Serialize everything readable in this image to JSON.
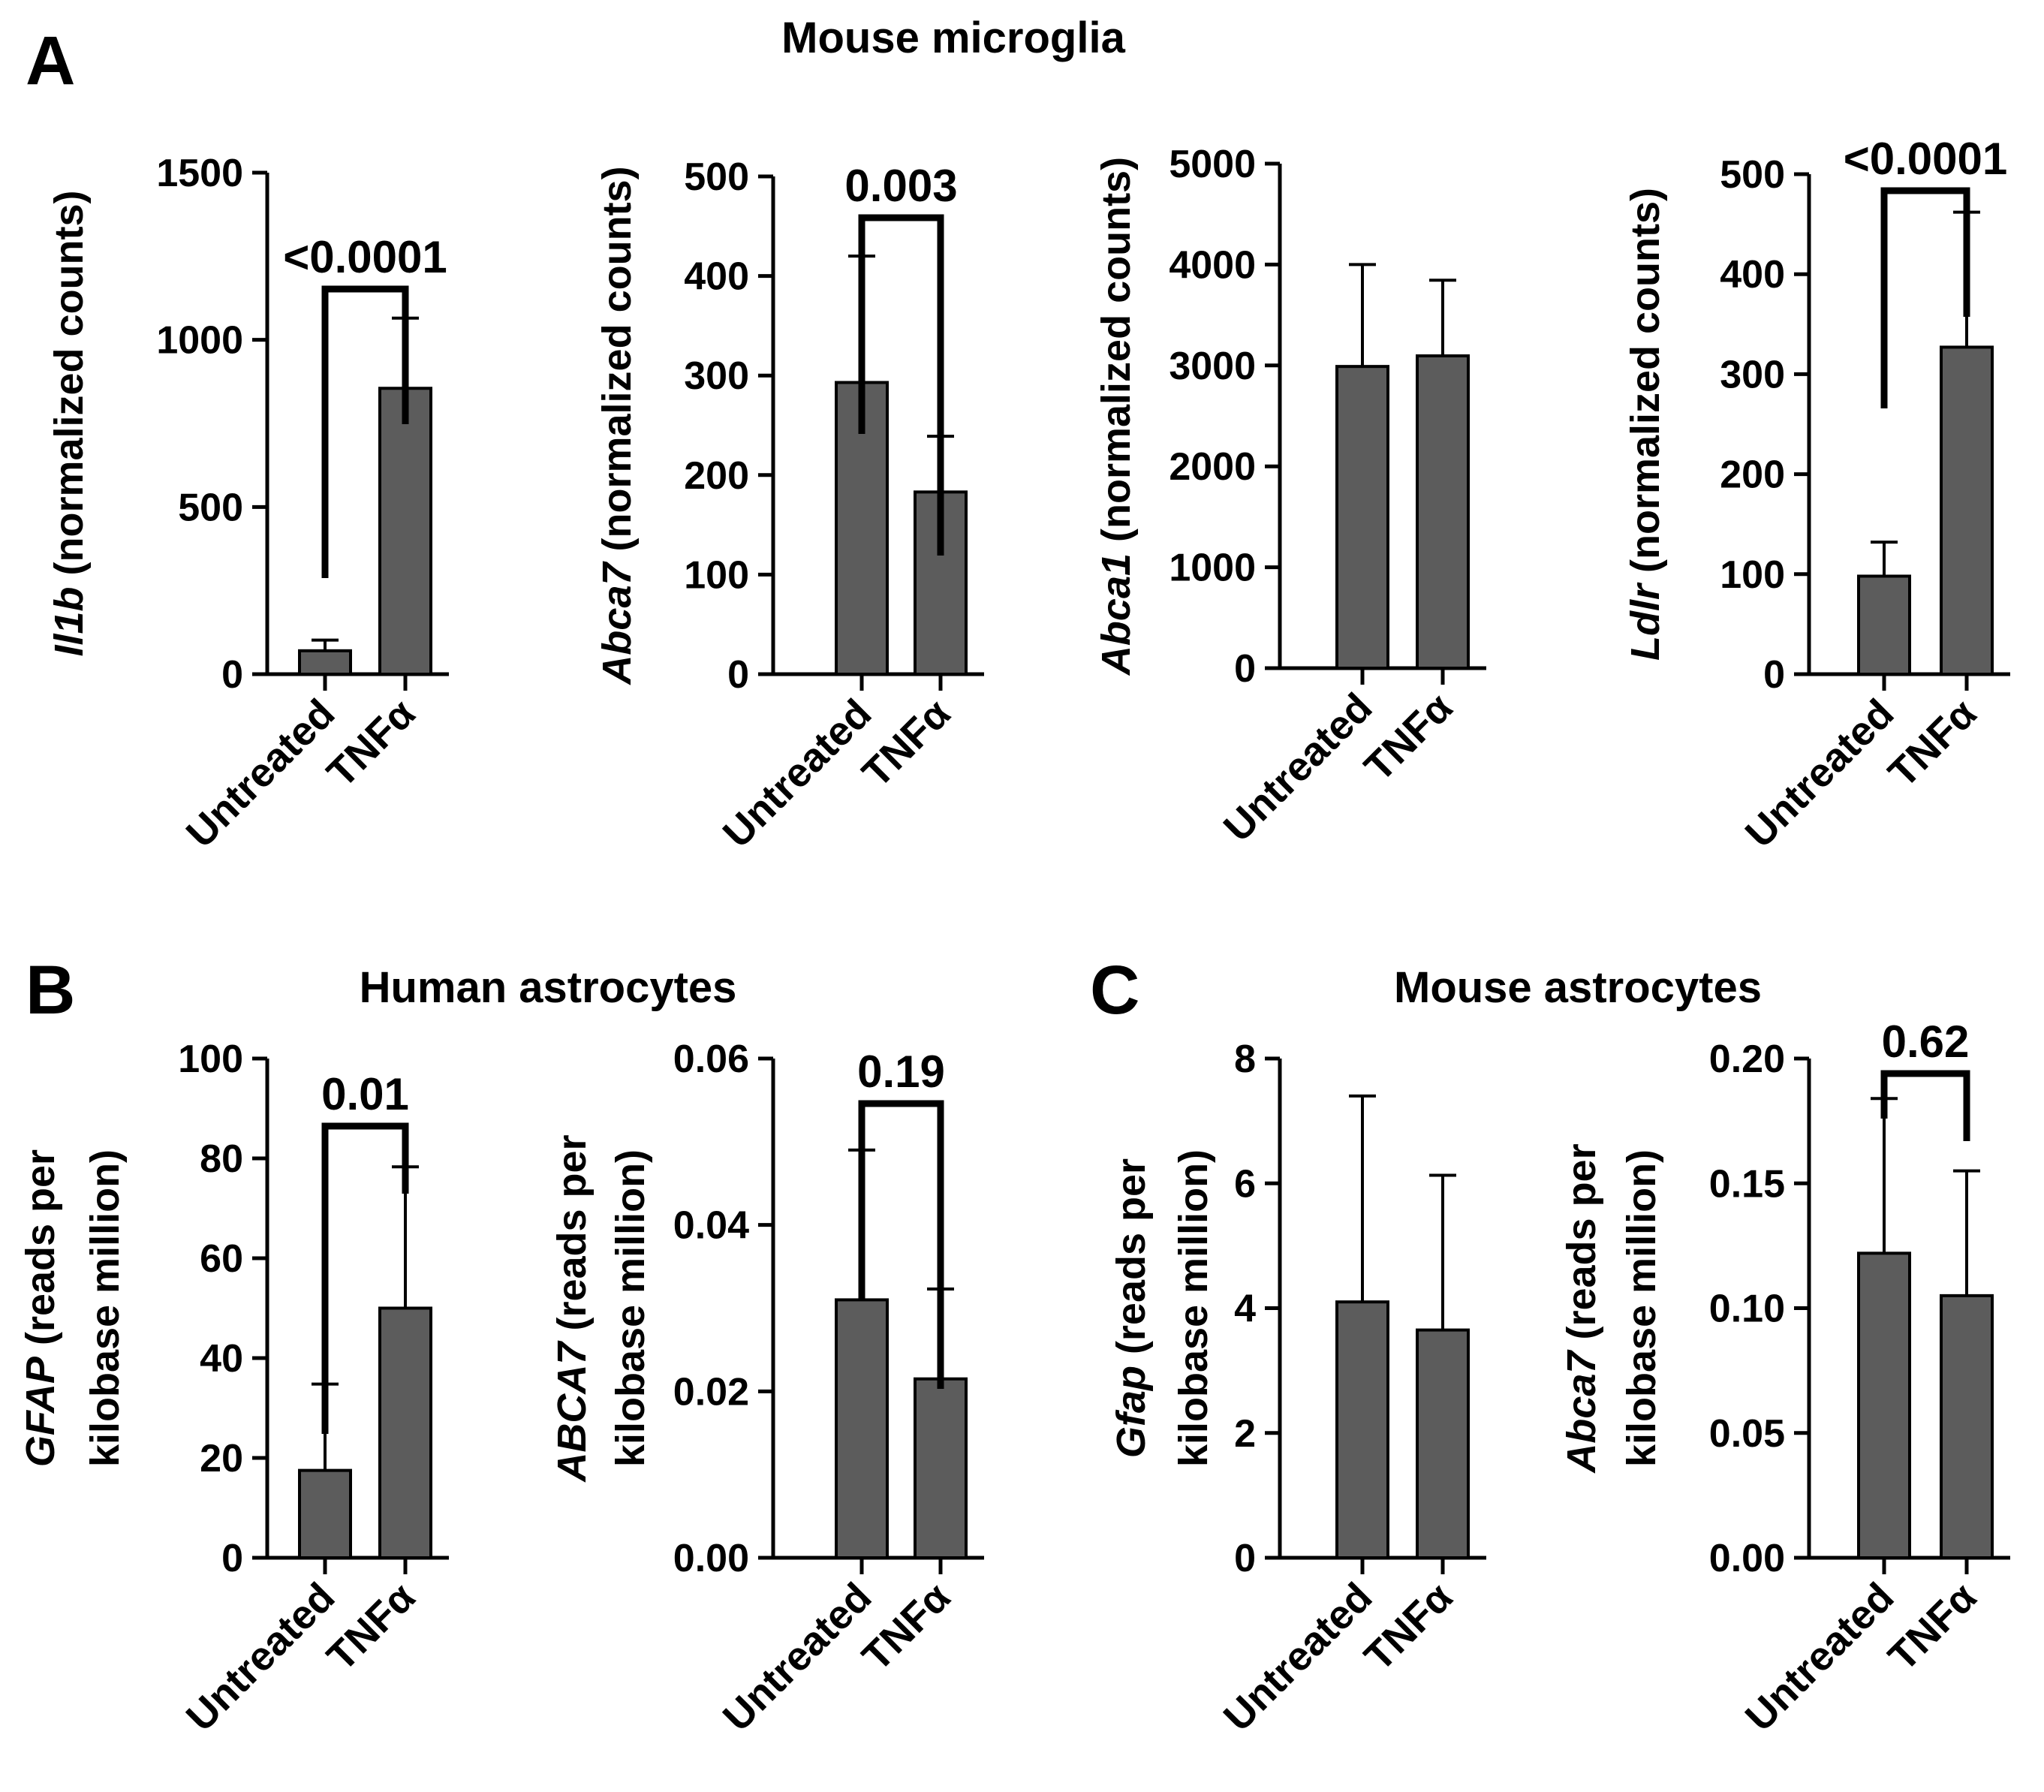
{
  "figure": {
    "panels": [
      {
        "letter": "A",
        "title": "Mouse microglia"
      },
      {
        "letter": "B",
        "title": "Human astrocytes"
      },
      {
        "letter": "C",
        "title": "Mouse astrocytes"
      }
    ]
  },
  "chart_data": [
    {
      "type": "bar",
      "panel": "A",
      "gene": "Il1b",
      "ylabel": " (normalized counts)",
      "categories": [
        "Untreated",
        "TNFα"
      ],
      "values": [
        70,
        855
      ],
      "errors": [
        32,
        210
      ],
      "ylim": [
        0,
        1500
      ],
      "yticks": [
        "0",
        "500",
        "1000",
        "1500"
      ],
      "significance": "<0.0001"
    },
    {
      "type": "bar",
      "panel": "A",
      "gene": "Abca7",
      "ylabel": " (normalized counts)",
      "categories": [
        "Untreated",
        "TNFα"
      ],
      "values": [
        293,
        183
      ],
      "errors": [
        127,
        56
      ],
      "ylim": [
        0,
        500
      ],
      "yticks": [
        "0",
        "100",
        "200",
        "300",
        "400",
        "500"
      ],
      "significance": "0.003"
    },
    {
      "type": "bar",
      "panel": "A",
      "gene": "Abca1",
      "ylabel": " (normalized counts)",
      "categories": [
        "Untreated",
        "TNFα"
      ],
      "values": [
        2990,
        3095
      ],
      "errors": [
        1010,
        750
      ],
      "ylim": [
        0,
        5000
      ],
      "yticks": [
        "0",
        "1000",
        "2000",
        "3000",
        "4000",
        "5000"
      ],
      "significance": null
    },
    {
      "type": "bar",
      "panel": "A",
      "gene": "Ldlr",
      "ylabel": " (normalized counts)",
      "categories": [
        "Untreated",
        "TNFα"
      ],
      "values": [
        98,
        327
      ],
      "errors": [
        34,
        135
      ],
      "ylim": [
        0,
        500
      ],
      "yticks": [
        "0",
        "100",
        "200",
        "300",
        "400",
        "500"
      ],
      "significance": "<0.0001"
    },
    {
      "type": "bar",
      "panel": "B",
      "gene": "GFAP",
      "ylabel": " (reads per",
      "ylabel2": "kilobase million)",
      "categories": [
        "Untreated",
        "TNFα"
      ],
      "values": [
        17.5,
        50
      ],
      "errors": [
        17.3,
        28.3
      ],
      "ylim": [
        0,
        100
      ],
      "yticks": [
        "0",
        "20",
        "40",
        "60",
        "80",
        "100"
      ],
      "significance": "0.01"
    },
    {
      "type": "bar",
      "panel": "B",
      "gene": "ABCA7",
      "ylabel": " (reads per",
      "ylabel2": "kilobase million)",
      "categories": [
        "Untreated",
        "TNFα"
      ],
      "values": [
        0.031,
        0.0215
      ],
      "errors": [
        0.018,
        0.0108
      ],
      "ylim": [
        0,
        0.06
      ],
      "yticks": [
        "0.00",
        "0.02",
        "0.04",
        "0.06"
      ],
      "significance": "0.19"
    },
    {
      "type": "bar",
      "panel": "C",
      "gene": "Gfap",
      "ylabel": " (reads per",
      "ylabel2": "kilobase million)",
      "categories": [
        "Untreated",
        "TNFα"
      ],
      "values": [
        4.1,
        3.65
      ],
      "errors": [
        3.3,
        2.48
      ],
      "ylim": [
        0,
        8
      ],
      "yticks": [
        "0",
        "2",
        "4",
        "6",
        "8"
      ],
      "significance": null
    },
    {
      "type": "bar",
      "panel": "C",
      "gene": "Abca7",
      "ylabel": " (reads per",
      "ylabel2": "kilobase million)",
      "categories": [
        "Untreated",
        "TNFα"
      ],
      "values": [
        0.122,
        0.105
      ],
      "errors": [
        0.062,
        0.05
      ],
      "ylim": [
        0,
        0.2
      ],
      "yticks": [
        "0.00",
        "0.05",
        "0.10",
        "0.15",
        "0.20"
      ],
      "significance": "0.62"
    }
  ],
  "style": {
    "bar_fill": "#5c5c5c",
    "line": "#000000"
  }
}
